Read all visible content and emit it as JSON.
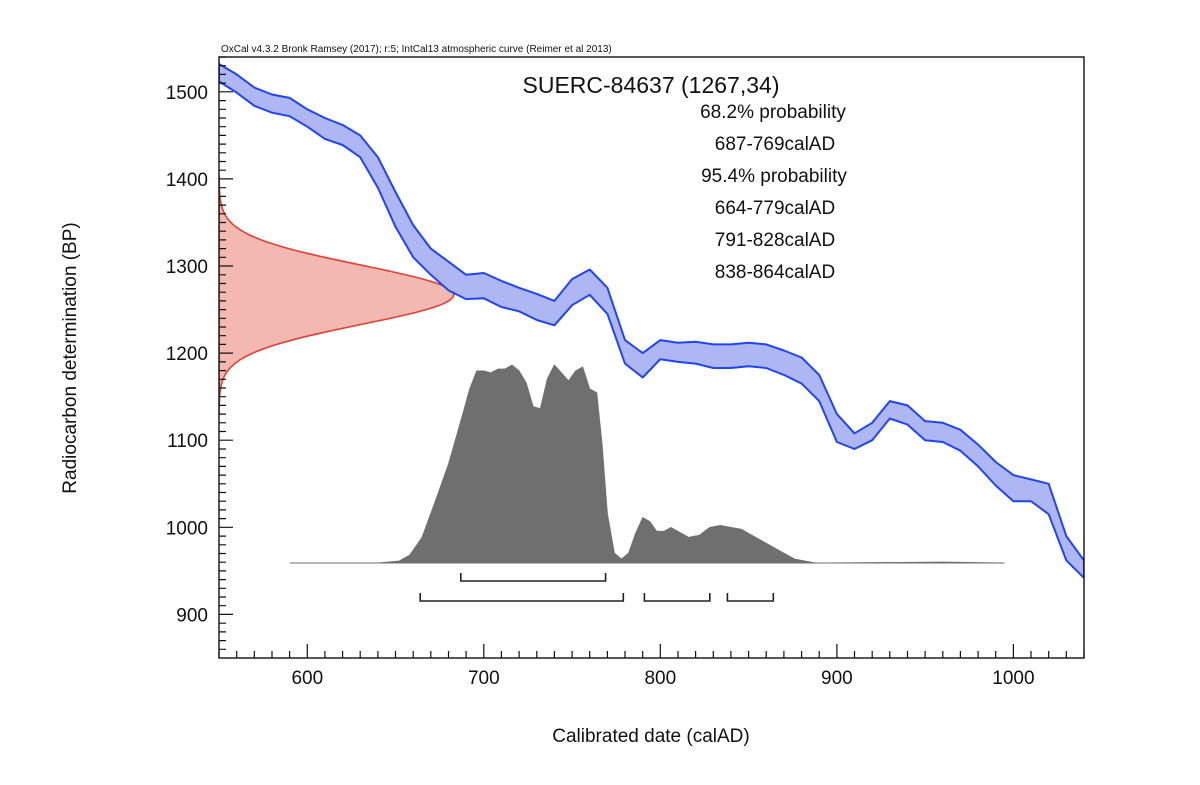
{
  "chart_data": {
    "type": "area",
    "credit": "OxCal v4.3.2 Bronk Ramsey (2017); r:5; IntCal13 atmospheric curve (Reimer et al 2013)",
    "title": "SUERC-84637 (1267,34)",
    "xlabel": "Calibrated date (calAD)",
    "ylabel": "Radiocarbon determination (BP)",
    "xlim": [
      550,
      1040
    ],
    "ylim": [
      850,
      1540
    ],
    "x_ticks": [
      600,
      700,
      800,
      900,
      1000
    ],
    "y_ticks": [
      900,
      1000,
      1100,
      1200,
      1300,
      1400,
      1500
    ],
    "annotations": [
      "68.2% probability",
      "687-769calAD",
      "95.4% probability",
      "664-779calAD",
      "791-828calAD",
      "838-864calAD"
    ],
    "ranges_68": [
      [
        687,
        769
      ]
    ],
    "ranges_95": [
      [
        664,
        779
      ],
      [
        791,
        828
      ],
      [
        838,
        864
      ]
    ],
    "measurement": {
      "mean_bp": 1267,
      "sigma": 34
    },
    "calibration_curve": {
      "name": "IntCal13",
      "x": [
        550,
        560,
        570,
        580,
        590,
        600,
        610,
        620,
        630,
        640,
        650,
        660,
        670,
        680,
        690,
        700,
        710,
        720,
        730,
        740,
        750,
        760,
        770,
        780,
        790,
        800,
        810,
        820,
        830,
        840,
        850,
        860,
        870,
        880,
        890,
        900,
        910,
        920,
        930,
        940,
        950,
        960,
        970,
        980,
        990,
        1000,
        1010,
        1020,
        1030,
        1040
      ],
      "upper": [
        1532,
        1520,
        1505,
        1497,
        1493,
        1480,
        1470,
        1462,
        1450,
        1425,
        1385,
        1347,
        1320,
        1305,
        1290,
        1292,
        1283,
        1275,
        1268,
        1260,
        1285,
        1296,
        1275,
        1215,
        1200,
        1215,
        1212,
        1213,
        1210,
        1210,
        1212,
        1210,
        1203,
        1195,
        1175,
        1130,
        1108,
        1120,
        1145,
        1140,
        1122,
        1120,
        1112,
        1095,
        1075,
        1060,
        1055,
        1050,
        990,
        962
      ],
      "lower": [
        1512,
        1499,
        1484,
        1476,
        1472,
        1460,
        1446,
        1439,
        1425,
        1390,
        1345,
        1310,
        1290,
        1272,
        1262,
        1263,
        1253,
        1248,
        1238,
        1232,
        1255,
        1267,
        1245,
        1188,
        1172,
        1193,
        1190,
        1188,
        1183,
        1183,
        1185,
        1183,
        1175,
        1165,
        1145,
        1098,
        1090,
        1100,
        1125,
        1118,
        1100,
        1098,
        1088,
        1070,
        1048,
        1030,
        1030,
        1015,
        962,
        942
      ]
    },
    "posterior_distribution": {
      "x": [
        590,
        640,
        652,
        658,
        665,
        672,
        680,
        688,
        692,
        696,
        700,
        704,
        708,
        712,
        716,
        720,
        724,
        728,
        732,
        736,
        740,
        744,
        748,
        752,
        756,
        760,
        764,
        767,
        770,
        774,
        778,
        782,
        786,
        790,
        794,
        798,
        802,
        806,
        810,
        816,
        822,
        828,
        834,
        840,
        846,
        852,
        858,
        864,
        870,
        876,
        882,
        888,
        895,
        960,
        995
      ],
      "density": [
        0,
        0,
        0.01,
        0.04,
        0.13,
        0.3,
        0.5,
        0.75,
        0.88,
        0.97,
        0.97,
        0.96,
        0.98,
        0.98,
        1.0,
        0.97,
        0.91,
        0.79,
        0.78,
        0.93,
        1.0,
        0.96,
        0.92,
        0.97,
        0.99,
        0.88,
        0.86,
        0.6,
        0.25,
        0.05,
        0.02,
        0.05,
        0.15,
        0.23,
        0.21,
        0.16,
        0.16,
        0.18,
        0.16,
        0.13,
        0.14,
        0.18,
        0.19,
        0.18,
        0.17,
        0.14,
        0.11,
        0.08,
        0.05,
        0.02,
        0.01,
        0,
        0,
        0.005,
        0
      ]
    },
    "colors": {
      "curve_fill": "#aeb7f4",
      "curve_line": "#1f45f2",
      "likelihood_fill": "#f4b8b3",
      "likelihood_line": "#e43f32",
      "posterior_fill": "#6f6f6f",
      "baseline": "#b8b8b8",
      "axis": "#111111"
    }
  }
}
